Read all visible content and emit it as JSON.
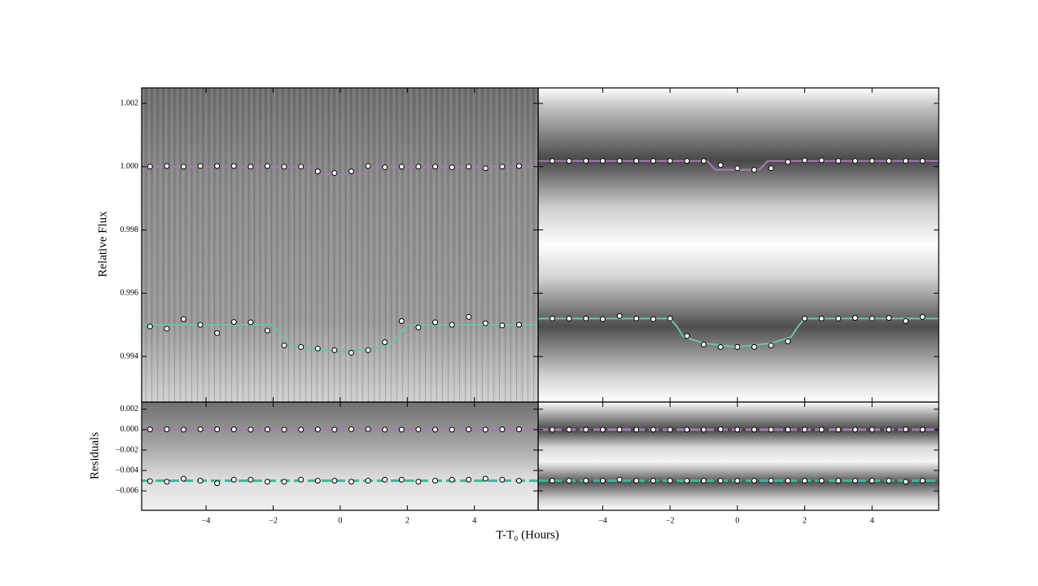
{
  "chart_data": [
    {
      "type": "scatter",
      "ylabel": "Relative Flux",
      "xlim": [
        -5.92,
        5.9
      ],
      "ylim": [
        0.99256,
        1.00249
      ],
      "yticks": [
        0.994,
        0.996,
        0.998,
        {
          "value": 1.0,
          "label": "1.000"
        },
        1.002
      ],
      "series": [
        {
          "style": "line",
          "color": "#a77bb5",
          "x": [
            -5.92,
            -0.9,
            -0.65,
            0.65,
            0.9,
            5.9
          ],
          "values": [
            1.0,
            1.0,
            0.99976,
            0.99976,
            1.0,
            1.0
          ]
        },
        {
          "style": "line",
          "color": "#6cc4aa",
          "x": [
            -5.92,
            -2,
            -1.8,
            -1.6,
            -1,
            0,
            1,
            1.6,
            1.8,
            2,
            5.9
          ],
          "values": [
            0.995,
            0.995,
            0.99475,
            0.99445,
            0.99425,
            0.99415,
            0.99425,
            0.99445,
            0.99475,
            0.995,
            0.995
          ]
        },
        {
          "style": "markers",
          "color": "#ffffff",
          "x": [
            -5.67,
            -5.17,
            -4.67,
            -4.17,
            -3.67,
            -3.17,
            -2.67,
            -2.17,
            -1.67,
            -1.17,
            -0.67,
            -0.17,
            0.33,
            0.83,
            1.33,
            1.83,
            2.33,
            2.83,
            3.33,
            3.83,
            4.33,
            4.83,
            5.33
          ],
          "values": [
            1.0,
            1.00002,
            1.0,
            1.00002,
            1.00002,
            1.00002,
            1.0,
            1.00002,
            1.0,
            1.0,
            0.99985,
            0.9998,
            0.99985,
            1.00002,
            0.99998,
            1.0,
            1.0,
            1.0,
            0.99998,
            1.0,
            0.99995,
            1.0,
            1.00002
          ]
        },
        {
          "style": "markers",
          "color": "#ffffff",
          "x": [
            -5.67,
            -5.17,
            -4.67,
            -4.17,
            -3.67,
            -3.17,
            -2.67,
            -2.17,
            -1.67,
            -1.17,
            -0.67,
            -0.17,
            0.33,
            0.83,
            1.33,
            1.83,
            2.33,
            2.83,
            3.33,
            3.83,
            4.33,
            4.83,
            5.33
          ],
          "values": [
            0.99495,
            0.99488,
            0.99518,
            0.995,
            0.99474,
            0.99509,
            0.99508,
            0.99482,
            0.99435,
            0.9943,
            0.99425,
            0.9942,
            0.99412,
            0.9942,
            0.99445,
            0.99512,
            0.99492,
            0.99508,
            0.995,
            0.99525,
            0.99505,
            0.99498,
            0.995
          ]
        }
      ]
    },
    {
      "type": "scatter",
      "xlim": [
        -5.92,
        5.98
      ],
      "ylim": [
        0.99256,
        1.00249
      ],
      "series": [
        {
          "style": "line",
          "color": "#a77bb5",
          "x": [
            -5.92,
            -0.9,
            -0.65,
            0.65,
            0.9,
            5.98
          ],
          "values": [
            1.00018,
            1.00018,
            0.9999,
            0.9999,
            1.00018,
            1.00018
          ]
        },
        {
          "style": "line",
          "color": "#6cc4aa",
          "x": [
            -5.92,
            -2,
            -1.8,
            -1.6,
            -1,
            0,
            1,
            1.6,
            1.8,
            2,
            5.98
          ],
          "values": [
            0.9952,
            0.9952,
            0.99495,
            0.99462,
            0.99442,
            0.9943,
            0.99442,
            0.99462,
            0.99495,
            0.9952,
            0.9952
          ]
        },
        {
          "style": "markers",
          "color": "#ffffff",
          "x": [
            -5.5,
            -5,
            -4.5,
            -4,
            -3.5,
            -3,
            -2.5,
            -2,
            -1.5,
            -1,
            -0.5,
            0,
            0.5,
            1,
            1.5,
            2,
            2.5,
            3,
            3.5,
            4,
            4.5,
            5,
            5.5
          ],
          "values": [
            1.00018,
            1.00018,
            1.00018,
            1.00018,
            1.00018,
            1.00018,
            1.00018,
            1.00018,
            1.00018,
            1.00018,
            1.00005,
            0.99995,
            0.9999,
            0.99995,
            1.00015,
            1.0002,
            1.0002,
            1.00018,
            1.00018,
            1.00018,
            1.00018,
            1.00018,
            1.00018
          ]
        },
        {
          "style": "markers",
          "color": "#ffffff",
          "x": [
            -5.5,
            -5,
            -4.5,
            -4,
            -3.5,
            -3,
            -2.5,
            -2,
            -1.5,
            -1,
            -0.5,
            0,
            0.5,
            1,
            1.5,
            2,
            2.5,
            3,
            3.5,
            4,
            4.5,
            5,
            5.5
          ],
          "values": [
            0.9952,
            0.9952,
            0.9952,
            0.99518,
            0.99528,
            0.9952,
            0.99518,
            0.9952,
            0.99465,
            0.99438,
            0.9943,
            0.9943,
            0.9943,
            0.99435,
            0.99448,
            0.9952,
            0.9952,
            0.9952,
            0.99522,
            0.9952,
            0.99522,
            0.99512,
            0.99525
          ]
        }
      ]
    },
    {
      "type": "scatter",
      "ylabel": "Residuals",
      "xlabel": "T-T₀ (Hours)",
      "xlim": [
        -5.92,
        5.9
      ],
      "ylim": [
        -0.0079,
        0.0027
      ],
      "xticks": [
        {
          "value": -4,
          "label": "−4"
        },
        {
          "value": -2,
          "label": "−2"
        },
        0,
        2,
        4
      ],
      "yticks": [
        {
          "value": -0.006,
          "label": "−0.006"
        },
        {
          "value": -0.004,
          "label": "−0.004"
        },
        {
          "value": -0.002,
          "label": "−0.002"
        },
        {
          "value": 0,
          "label": "0.000"
        },
        0.002
      ],
      "series": [
        {
          "style": "dashed",
          "color": "#a77bb5",
          "x": [
            -5.92,
            5.9
          ],
          "values": [
            0,
            0
          ]
        },
        {
          "style": "dashed",
          "color": "#3cb89a",
          "x": [
            -5.92,
            5.9
          ],
          "values": [
            -0.005,
            -0.005
          ]
        },
        {
          "style": "markers",
          "color": "#ffffff",
          "x": [
            -5.67,
            -5.17,
            -4.67,
            -4.17,
            -3.67,
            -3.17,
            -2.67,
            -2.17,
            -1.67,
            -1.17,
            -0.67,
            -0.17,
            0.33,
            0.83,
            1.33,
            1.83,
            2.33,
            2.83,
            3.33,
            3.83,
            4.33,
            4.83,
            5.33
          ],
          "values": [
            2e-05,
            3e-05,
            0.0,
            3e-05,
            3e-05,
            2e-05,
            0.0,
            2e-05,
            0.0,
            0.0,
            2e-05,
            0.0,
            4e-05,
            4e-05,
            0.0,
            0.0,
            2e-05,
            0.0,
            0.0,
            2e-05,
            0.0,
            2e-05,
            3e-05
          ]
        },
        {
          "style": "markers",
          "color": "#ffffff",
          "x": [
            -5.67,
            -5.17,
            -4.67,
            -4.17,
            -3.67,
            -3.17,
            -2.67,
            -2.17,
            -1.67,
            -1.17,
            -0.67,
            -0.17,
            0.33,
            0.83,
            1.33,
            1.83,
            2.33,
            2.83,
            3.33,
            3.83,
            4.33,
            4.83,
            5.33
          ],
          "values": [
            -0.00505,
            -0.0051,
            -0.0048,
            -0.005,
            -0.00525,
            -0.0049,
            -0.0049,
            -0.0051,
            -0.0051,
            -0.0049,
            -0.005,
            -0.005,
            -0.0051,
            -0.005,
            -0.0049,
            -0.0049,
            -0.0051,
            -0.005,
            -0.0049,
            -0.0049,
            -0.0048,
            -0.0049,
            -0.005
          ]
        }
      ]
    },
    {
      "type": "scatter",
      "xlim": [
        -5.92,
        5.98
      ],
      "ylim": [
        -0.0079,
        0.0027
      ],
      "xticks": [
        {
          "value": -4,
          "label": "−4"
        },
        {
          "value": -2,
          "label": "−2"
        },
        0,
        2,
        4
      ],
      "series": [
        {
          "style": "dashed",
          "color": "#a77bb5",
          "x": [
            -5.92,
            5.98
          ],
          "values": [
            0,
            0
          ]
        },
        {
          "style": "dashed",
          "color": "#3cb89a",
          "x": [
            -5.92,
            5.98
          ],
          "values": [
            -0.005,
            -0.005
          ]
        },
        {
          "style": "markers",
          "color": "#ffffff",
          "x": [
            -5.5,
            -5,
            -4.5,
            -4,
            -3.5,
            -3,
            -2.5,
            -2,
            -1.5,
            -1,
            -0.5,
            0,
            0.5,
            1,
            1.5,
            2,
            2.5,
            3,
            3.5,
            4,
            4.5,
            5,
            5.5
          ],
          "values": [
            0.0,
            0.0,
            0.0,
            0.0,
            0.0,
            0.0,
            0.0,
            0.0,
            0.0,
            0.0,
            3e-05,
            0.0,
            0.0,
            0.0,
            0.0,
            0.0,
            0.0,
            0.0,
            0.0,
            0.0,
            0.0,
            2e-05,
            0.0
          ]
        },
        {
          "style": "markers",
          "color": "#ffffff",
          "x": [
            -5.5,
            -5,
            -4.5,
            -4,
            -3.5,
            -3,
            -2.5,
            -2,
            -1.5,
            -1,
            -0.5,
            0,
            0.5,
            1,
            1.5,
            2,
            2.5,
            3,
            3.5,
            4,
            4.5,
            5,
            5.5
          ],
          "values": [
            -0.005,
            -0.005,
            -0.005,
            -0.005,
            -0.0049,
            -0.005,
            -0.005,
            -0.005,
            -0.005,
            -0.005,
            -0.005,
            -0.005,
            -0.005,
            -0.005,
            -0.005,
            -0.005,
            -0.005,
            -0.005,
            -0.005,
            -0.005,
            -0.005,
            -0.0051,
            -0.005
          ]
        }
      ]
    }
  ]
}
